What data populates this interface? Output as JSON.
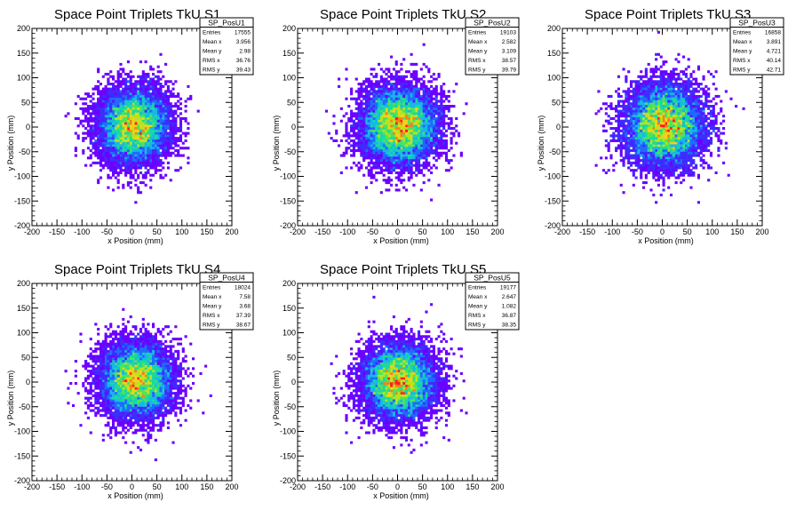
{
  "axis_common": {
    "xlabel": "x Position (mm)",
    "ylabel": "y Position (mm)",
    "xlim": [
      -200,
      200
    ],
    "ylim": [
      -200,
      200
    ],
    "xticks": [
      -200,
      -150,
      -100,
      -50,
      0,
      50,
      100,
      150,
      200
    ],
    "yticks": [
      -200,
      -150,
      -100,
      -50,
      0,
      50,
      100,
      150,
      200
    ]
  },
  "stats_labels": [
    "Entries",
    "Mean x",
    "Mean y",
    "RMS x",
    "RMS y"
  ],
  "palette": [
    "#6a00ff",
    "#3f2bff",
    "#1f6bff",
    "#17b7e8",
    "#19d9a0",
    "#4ee35a",
    "#b4e51e",
    "#f2d21a",
    "#ff7d1a",
    "#ff1e1e"
  ],
  "chart_data": [
    {
      "type": "heatmap",
      "title": "Space Point Triplets TkU S1",
      "stats_name": "SP_PosU1",
      "stats": {
        "entries": "17555",
        "mean_x": "3.956",
        "mean_y": "2.98",
        "rms_x": "36.76",
        "rms_y": "39.43"
      },
      "center": [
        3.956,
        2.98
      ],
      "sigma": [
        36.76,
        39.43
      ],
      "entries": 17555
    },
    {
      "type": "heatmap",
      "title": "Space Point Triplets TkU S2",
      "stats_name": "SP_PosU2",
      "stats": {
        "entries": "19103",
        "mean_x": "2.582",
        "mean_y": "3.109",
        "rms_x": "38.57",
        "rms_y": "39.79"
      },
      "center": [
        2.582,
        3.109
      ],
      "sigma": [
        38.57,
        39.79
      ],
      "entries": 19103
    },
    {
      "type": "heatmap",
      "title": "Space Point Triplets TkU S3",
      "stats_name": "SP_PosU3",
      "stats": {
        "entries": "16858",
        "mean_x": "3.891",
        "mean_y": "4.721",
        "rms_x": "40.14",
        "rms_y": "42.71"
      },
      "center": [
        3.891,
        4.721
      ],
      "sigma": [
        40.14,
        42.71
      ],
      "entries": 16858
    },
    {
      "type": "heatmap",
      "title": "Space Point Triplets TkU S4",
      "stats_name": "SP_PosU4",
      "stats": {
        "entries": "18024",
        "mean_x": "7.58",
        "mean_y": "3.68",
        "rms_x": "37.39",
        "rms_y": "38.67"
      },
      "center": [
        7.58,
        3.68
      ],
      "sigma": [
        37.39,
        38.67
      ],
      "entries": 18024
    },
    {
      "type": "heatmap",
      "title": "Space Point Triplets TkU S5",
      "stats_name": "SP_PosU5",
      "stats": {
        "entries": "19177",
        "mean_x": "2.647",
        "mean_y": "1.082",
        "rms_x": "36.87",
        "rms_y": "38.35"
      },
      "center": [
        2.647,
        1.082
      ],
      "sigma": [
        36.87,
        38.35
      ],
      "entries": 19177
    }
  ]
}
